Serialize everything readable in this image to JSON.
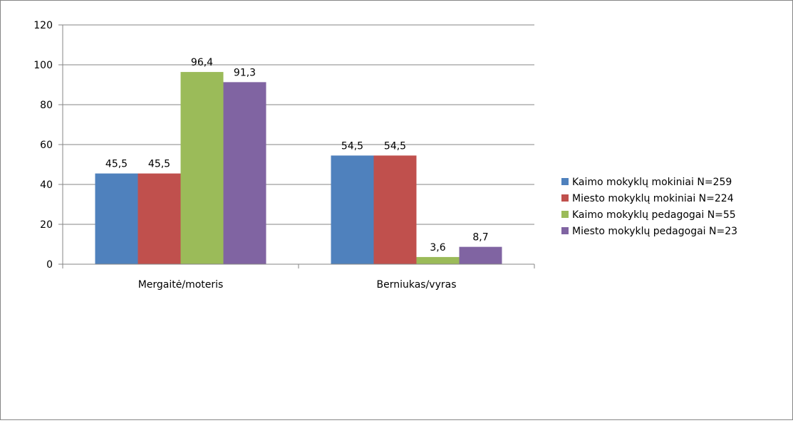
{
  "chart_data": {
    "type": "bar",
    "categories": [
      "Mergaitė/moteris",
      "Berniukas/vyras"
    ],
    "series": [
      {
        "name": "Kaimo mokyklų mokiniai N=259",
        "color": "#4f81bd",
        "values": [
          45.5,
          54.5
        ],
        "labels": [
          "45,5",
          "54,5"
        ]
      },
      {
        "name": "Miesto mokyklų mokiniai N=224",
        "color": "#c0504d",
        "values": [
          45.5,
          54.5
        ],
        "labels": [
          "45,5",
          "54,5"
        ]
      },
      {
        "name": "Kaimo mokyklų pedagogai N=55",
        "color": "#9bbb59",
        "values": [
          96.4,
          3.6
        ],
        "labels": [
          "96,4",
          "3,6"
        ]
      },
      {
        "name": "Miesto mokyklų pedagogai N=23",
        "color": "#8064a2",
        "values": [
          91.3,
          8.7
        ],
        "labels": [
          "91,3",
          "8,7"
        ]
      }
    ],
    "ylim": [
      0,
      120
    ],
    "yticks": [
      "0",
      "20",
      "40",
      "60",
      "80",
      "100",
      "120"
    ],
    "grid": true,
    "legend_position": "right"
  }
}
